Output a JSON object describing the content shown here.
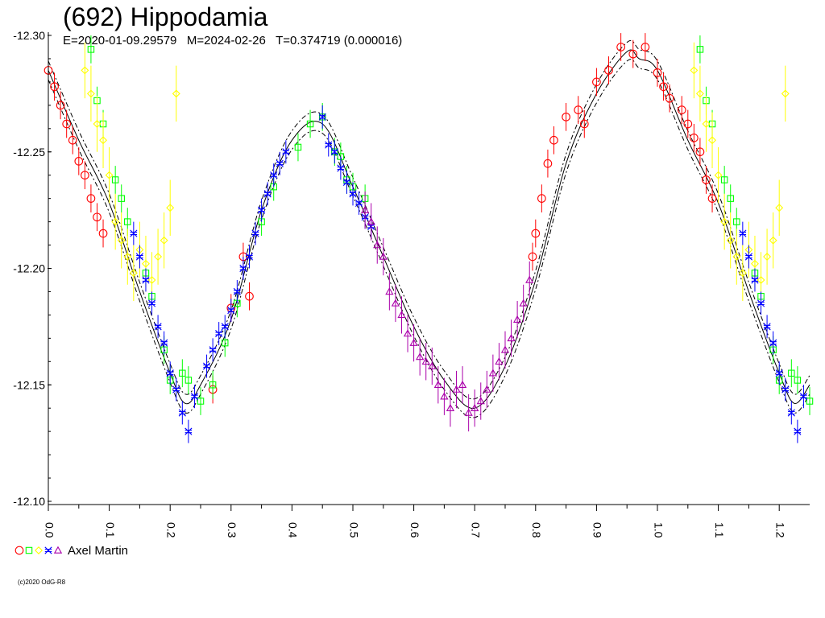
{
  "chart_data": {
    "type": "scatter",
    "title": "(692) Hippodamia",
    "subtitle": "E=2020-01-09.29579   M=2024-02-26   T=0.374719 (0.000016)",
    "xlabel": "",
    "ylabel": "",
    "xlim": [
      0.0,
      1.25
    ],
    "ylim": [
      -12.1,
      -12.3
    ],
    "y_inverted": true,
    "x_ticks": [
      "0.0",
      "0.1",
      "0.2",
      "0.3",
      "0.4",
      "0.5",
      "0.6",
      "0.7",
      "0.8",
      "0.9",
      "1.0",
      "1.1",
      "1.2"
    ],
    "y_ticks": [
      "-12.30",
      "-12.25",
      "-12.20",
      "-12.15",
      "-12.10"
    ],
    "grid": false,
    "legend_position": "bottom-left",
    "legend_label": "Axel Martin",
    "copyright": "(c)2020 OdG-R8",
    "fit_curve": {
      "x": [
        0.0,
        0.05,
        0.1,
        0.15,
        0.2,
        0.225,
        0.25,
        0.3,
        0.35,
        0.4,
        0.45,
        0.5,
        0.55,
        0.6,
        0.65,
        0.7,
        0.75,
        0.8,
        0.85,
        0.9,
        0.95,
        0.97,
        1.0,
        1.05,
        1.1,
        1.15,
        1.2,
        1.225,
        1.25
      ],
      "y": [
        -12.285,
        -12.255,
        -12.228,
        -12.19,
        -12.155,
        -12.142,
        -12.15,
        -12.178,
        -12.225,
        -12.255,
        -12.262,
        -12.235,
        -12.205,
        -12.175,
        -12.152,
        -12.14,
        -12.158,
        -12.195,
        -12.245,
        -12.275,
        -12.293,
        -12.29,
        -12.285,
        -12.255,
        -12.228,
        -12.19,
        -12.155,
        -12.142,
        -12.15
      ],
      "band": 0.004
    },
    "series": [
      {
        "name": "",
        "marker": "circle",
        "color": "#ff0000",
        "err": 0.006,
        "x": [
          0.0,
          0.01,
          0.02,
          0.03,
          0.04,
          0.05,
          0.06,
          0.07,
          0.08,
          0.09,
          0.27,
          0.3,
          0.32,
          0.33,
          0.795,
          0.8,
          0.81,
          0.82,
          0.83,
          0.85,
          0.87,
          0.88,
          0.9,
          0.92,
          0.94,
          0.96,
          0.98,
          1.0,
          1.01,
          1.02,
          1.04,
          1.05,
          1.06,
          1.07,
          1.08,
          1.09
        ],
        "y": [
          -12.285,
          -12.278,
          -12.27,
          -12.262,
          -12.255,
          -12.246,
          -12.24,
          -12.23,
          -12.222,
          -12.215,
          -12.148,
          -12.183,
          -12.205,
          -12.188,
          -12.205,
          -12.215,
          -12.23,
          -12.245,
          -12.255,
          -12.265,
          -12.268,
          -12.262,
          -12.28,
          -12.285,
          -12.295,
          -12.292,
          -12.295,
          -12.284,
          -12.278,
          -12.273,
          -12.268,
          -12.262,
          -12.256,
          -12.25,
          -12.238,
          -12.23
        ]
      },
      {
        "name": "",
        "marker": "square",
        "color": "#00ff00",
        "err": 0.006,
        "x": [
          0.07,
          0.08,
          0.09,
          0.11,
          0.12,
          0.13,
          0.16,
          0.17,
          0.19,
          0.2,
          0.22,
          0.23,
          0.25,
          0.27,
          0.29,
          0.31,
          0.35,
          0.37,
          0.41,
          0.43,
          0.45,
          0.47,
          0.48,
          0.49,
          0.5,
          0.52,
          1.07,
          1.08,
          1.09,
          1.11,
          1.12,
          1.13,
          1.16,
          1.17,
          1.19,
          1.2,
          1.22,
          1.23,
          1.25
        ],
        "y": [
          -12.294,
          -12.272,
          -12.262,
          -12.238,
          -12.23,
          -12.22,
          -12.198,
          -12.188,
          -12.165,
          -12.152,
          -12.155,
          -12.152,
          -12.143,
          -12.15,
          -12.168,
          -12.185,
          -12.22,
          -12.235,
          -12.252,
          -12.262,
          -12.265,
          -12.25,
          -12.248,
          -12.238,
          -12.235,
          -12.23,
          -12.294,
          -12.272,
          -12.262,
          -12.238,
          -12.23,
          -12.22,
          -12.198,
          -12.188,
          -12.165,
          -12.152,
          -12.155,
          -12.152,
          -12.143
        ]
      },
      {
        "name": "",
        "marker": "diamond",
        "color": "#ffff00",
        "err": 0.012,
        "x": [
          0.06,
          0.07,
          0.08,
          0.09,
          0.1,
          0.11,
          0.12,
          0.13,
          0.14,
          0.15,
          0.16,
          0.17,
          0.18,
          0.19,
          0.2,
          0.21,
          1.06,
          1.07,
          1.08,
          1.09,
          1.1,
          1.11,
          1.12,
          1.13,
          1.14,
          1.15,
          1.16,
          1.17,
          1.18,
          1.19,
          1.2,
          1.21
        ],
        "y": [
          -12.285,
          -12.275,
          -12.262,
          -12.255,
          -12.24,
          -12.22,
          -12.212,
          -12.205,
          -12.198,
          -12.208,
          -12.202,
          -12.195,
          -12.205,
          -12.212,
          -12.226,
          -12.275,
          -12.285,
          -12.275,
          -12.262,
          -12.255,
          -12.24,
          -12.22,
          -12.212,
          -12.205,
          -12.198,
          -12.208,
          -12.202,
          -12.195,
          -12.205,
          -12.212,
          -12.226,
          -12.275
        ]
      },
      {
        "name": "",
        "marker": "star",
        "color": "#0000ff",
        "err": 0.005,
        "x": [
          0.14,
          0.15,
          0.16,
          0.17,
          0.18,
          0.19,
          0.2,
          0.21,
          0.22,
          0.23,
          0.24,
          0.26,
          0.27,
          0.28,
          0.29,
          0.3,
          0.31,
          0.32,
          0.33,
          0.34,
          0.35,
          0.36,
          0.37,
          0.38,
          0.39,
          0.45,
          0.46,
          0.47,
          0.48,
          0.49,
          0.5,
          0.51,
          0.52,
          0.53,
          1.14,
          1.15,
          1.16,
          1.17,
          1.18,
          1.19,
          1.2,
          1.21,
          1.22,
          1.23,
          1.24
        ],
        "y": [
          -12.215,
          -12.205,
          -12.195,
          -12.185,
          -12.175,
          -12.168,
          -12.155,
          -12.148,
          -12.138,
          -12.13,
          -12.145,
          -12.158,
          -12.165,
          -12.172,
          -12.175,
          -12.182,
          -12.19,
          -12.2,
          -12.205,
          -12.215,
          -12.225,
          -12.232,
          -12.24,
          -12.245,
          -12.25,
          -12.265,
          -12.253,
          -12.25,
          -12.243,
          -12.237,
          -12.232,
          -12.228,
          -12.222,
          -12.218,
          -12.215,
          -12.205,
          -12.195,
          -12.185,
          -12.175,
          -12.168,
          -12.155,
          -12.148,
          -12.138,
          -12.13,
          -12.145
        ]
      },
      {
        "name": "",
        "marker": "triangle",
        "color": "#aa00aa",
        "err": 0.008,
        "x": [
          0.52,
          0.53,
          0.54,
          0.55,
          0.56,
          0.57,
          0.58,
          0.59,
          0.6,
          0.61,
          0.62,
          0.63,
          0.64,
          0.65,
          0.66,
          0.67,
          0.68,
          0.69,
          0.7,
          0.71,
          0.72,
          0.73,
          0.74,
          0.75,
          0.76,
          0.77,
          0.78,
          0.79
        ],
        "y": [
          -12.225,
          -12.22,
          -12.21,
          -12.205,
          -12.19,
          -12.185,
          -12.18,
          -12.172,
          -12.168,
          -12.162,
          -12.16,
          -12.158,
          -12.15,
          -12.145,
          -12.14,
          -12.148,
          -12.15,
          -12.138,
          -12.14,
          -12.143,
          -12.148,
          -12.155,
          -12.16,
          -12.165,
          -12.17,
          -12.178,
          -12.185,
          -12.195
        ]
      }
    ]
  }
}
